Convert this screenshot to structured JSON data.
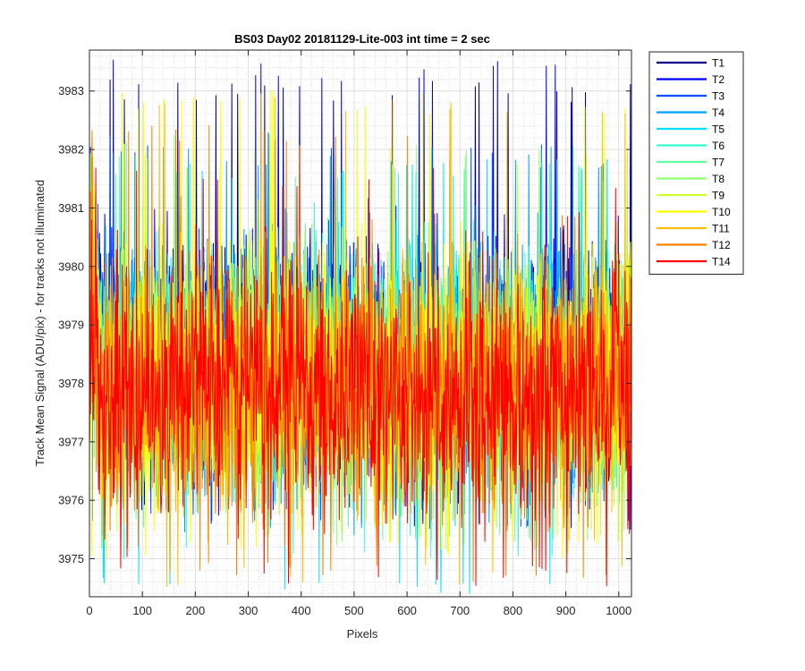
{
  "chart_data": {
    "type": "line",
    "title": "BS03 Day02 20181129-Lite-003 int time = 2 sec",
    "xlabel": "Pixels",
    "ylabel": "Track Mean Signal (ADU/pix) - for tracks not illuminated",
    "xlim": [
      0,
      1024
    ],
    "ylim": [
      3974.35,
      3983.7
    ],
    "xticks": [
      0,
      100,
      200,
      300,
      400,
      500,
      600,
      700,
      800,
      900,
      1000
    ],
    "yticks": [
      3975,
      3976,
      3977,
      3978,
      3979,
      3980,
      3981,
      3982,
      3983
    ],
    "grid": "on (major and minor, dotted)",
    "legend_location": "outside-right",
    "points_per_series": 1024,
    "series": [
      {
        "name": "T1",
        "color": "#00008f",
        "mean": 3978.45,
        "spread": 1.0,
        "min": 3975.6,
        "max": 3983.2
      },
      {
        "name": "T2",
        "color": "#0000ff",
        "mean": 3978.4,
        "spread": 1.0,
        "min": 3975.5,
        "max": 3983.55
      },
      {
        "name": "T3",
        "color": "#0050ff",
        "mean": 3978.35,
        "spread": 1.0,
        "min": 3975.5,
        "max": 3982.3
      },
      {
        "name": "T4",
        "color": "#00a0ff",
        "mean": 3978.3,
        "spread": 1.0,
        "min": 3975.4,
        "max": 3982.05
      },
      {
        "name": "T5",
        "color": "#00dfff",
        "mean": 3978.25,
        "spread": 1.0,
        "min": 3974.4,
        "max": 3981.9
      },
      {
        "name": "T6",
        "color": "#30ffcf",
        "mean": 3978.2,
        "spread": 1.0,
        "min": 3975.0,
        "max": 3981.85
      },
      {
        "name": "T7",
        "color": "#60ff9f",
        "mean": 3978.15,
        "spread": 1.0,
        "min": 3975.3,
        "max": 3981.9
      },
      {
        "name": "T8",
        "color": "#8fff70",
        "mean": 3978.1,
        "spread": 1.0,
        "min": 3975.2,
        "max": 3982.25
      },
      {
        "name": "T9",
        "color": "#cfff30",
        "mean": 3978.05,
        "spread": 1.0,
        "min": 3975.1,
        "max": 3982.05
      },
      {
        "name": "T10",
        "color": "#ffff00",
        "mean": 3978.0,
        "spread": 1.05,
        "min": 3975.0,
        "max": 3983.0
      },
      {
        "name": "T11",
        "color": "#ffbf00",
        "mean": 3977.95,
        "spread": 1.05,
        "min": 3974.5,
        "max": 3983.0
      },
      {
        "name": "T12",
        "color": "#ff8000",
        "mean": 3977.9,
        "spread": 1.05,
        "min": 3974.6,
        "max": 3982.45
      },
      {
        "name": "T14",
        "color": "#ff0000",
        "mean": 3977.85,
        "spread": 1.1,
        "min": 3974.5,
        "max": 3981.7
      }
    ]
  }
}
